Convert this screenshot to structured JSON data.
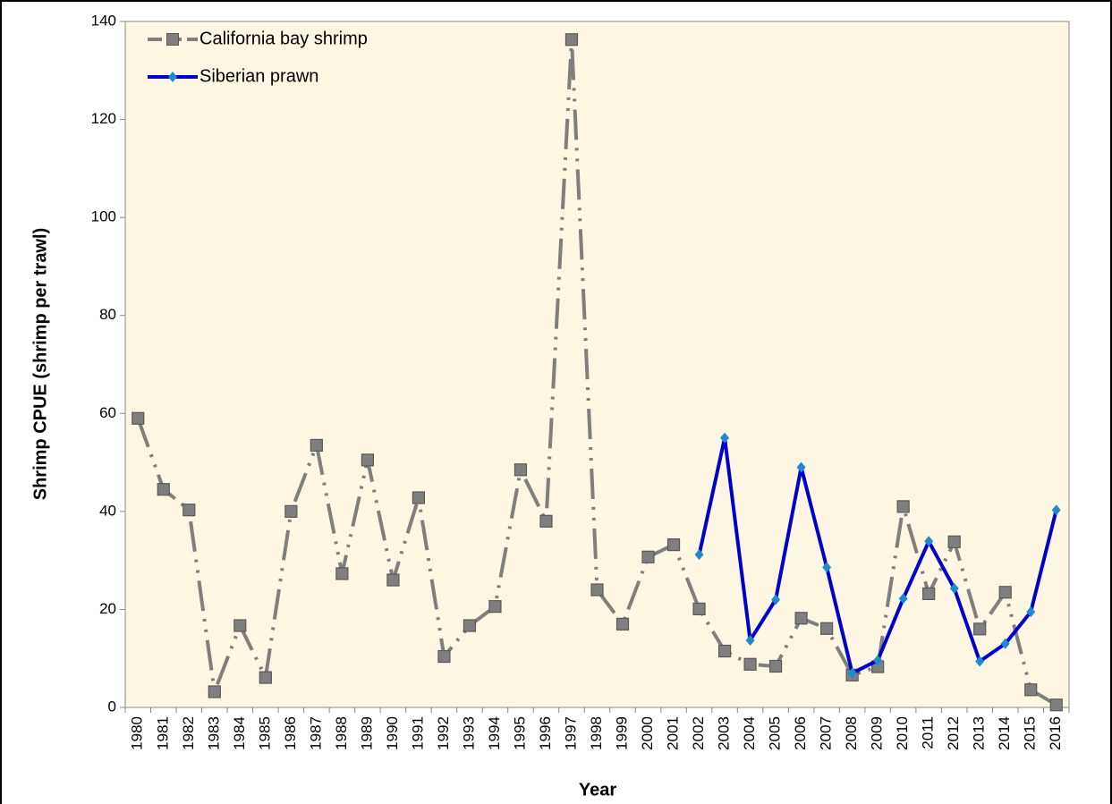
{
  "chart_data": {
    "type": "line",
    "x_label": "Year",
    "y_label": "Shrimp CPUE (shrimp per trawl)",
    "categories": [
      "1980",
      "1981",
      "1982",
      "1983",
      "1984",
      "1985",
      "1986",
      "1987",
      "1988",
      "1989",
      "1990",
      "1991",
      "1992",
      "1993",
      "1994",
      "1995",
      "1996",
      "1997",
      "1998",
      "1999",
      "2000",
      "2001",
      "2002",
      "2003",
      "2004",
      "2005",
      "2006",
      "2007",
      "2008",
      "2009",
      "2010",
      "2011",
      "2012",
      "2013",
      "2014",
      "2015",
      "2016"
    ],
    "series": [
      {
        "name": "California bay shrimp",
        "color": "#7f7f7f",
        "marker": "square",
        "dash": "dash-dot-dot",
        "values": [
          59,
          44.5,
          40.3,
          3.2,
          16.7,
          6.1,
          40,
          53.5,
          27.3,
          50.5,
          26,
          42.8,
          10.4,
          16.7,
          20.6,
          48.5,
          38,
          136.3,
          24,
          17,
          30.7,
          33.2,
          20.1,
          11.5,
          8.8,
          8.4,
          18.2,
          16.1,
          6.6,
          8.3,
          41,
          23.2,
          33.8,
          16,
          23.5,
          3.6,
          0.5
        ]
      },
      {
        "name": "Siberian prawn",
        "color": "#0000cc",
        "marker": "diamond",
        "marker_color": "#1e8bd0",
        "dash": "solid",
        "values": [
          null,
          null,
          null,
          null,
          null,
          null,
          null,
          null,
          null,
          null,
          null,
          null,
          null,
          null,
          null,
          null,
          null,
          null,
          null,
          null,
          null,
          null,
          31.2,
          55,
          13.7,
          22,
          49,
          28.6,
          7,
          9.6,
          22.2,
          33.9,
          24.3,
          9.4,
          13,
          19.5,
          40.3
        ]
      }
    ],
    "ylim": [
      0,
      140
    ],
    "yticks": [
      0,
      20,
      40,
      60,
      80,
      100,
      120,
      140
    ],
    "grid": false,
    "legend": "top-left",
    "plot_background": "#fdf6e3"
  }
}
